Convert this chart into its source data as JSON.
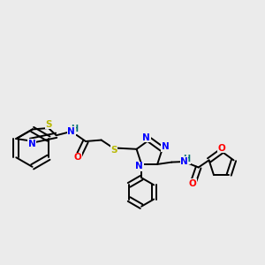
{
  "background_color": "#ebebeb",
  "line_color": "#000000",
  "bond_width": 1.4,
  "atom_colors": {
    "N": "#0000ff",
    "O": "#ff0000",
    "S": "#b8b800",
    "H": "#007070",
    "C": "#000000"
  },
  "font_size": 7.5,
  "fig_width": 3.0,
  "fig_height": 3.0,
  "dpi": 100
}
